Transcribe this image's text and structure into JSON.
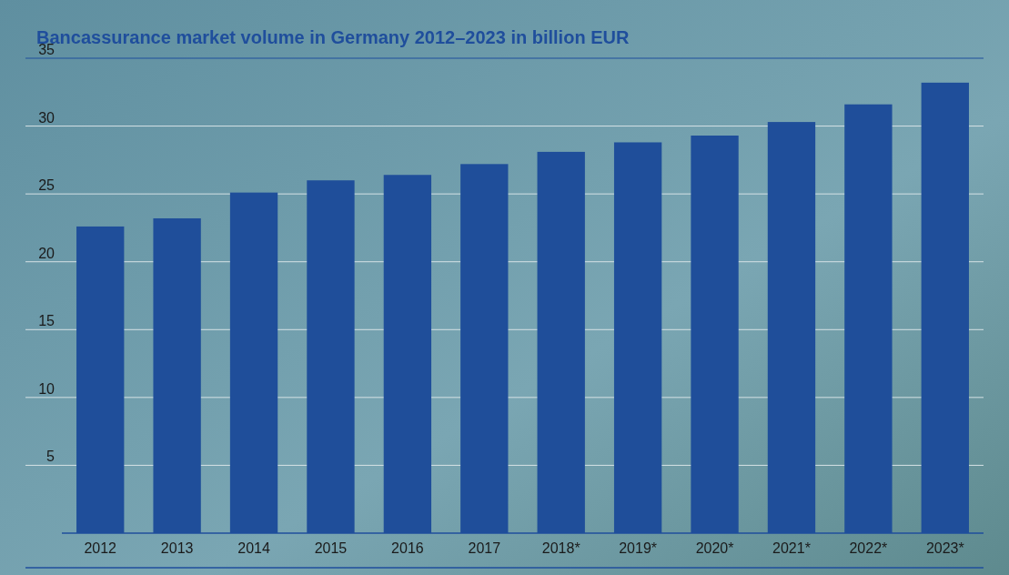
{
  "chart_data": {
    "type": "bar",
    "title": "Bancassurance market volume in Germany 2012–2023 in billion EUR",
    "categories": [
      "2012",
      "2013",
      "2014",
      "2015",
      "2016",
      "2017",
      "2018*",
      "2019*",
      "2020*",
      "2021*",
      "2022*",
      "2023*"
    ],
    "values": [
      22.6,
      23.2,
      25.1,
      26.0,
      26.4,
      27.2,
      28.1,
      28.8,
      29.3,
      30.3,
      31.6,
      33.2
    ],
    "color": "#1f4e9a",
    "ylim": [
      0,
      35
    ],
    "yticks": [
      5,
      10,
      15,
      20,
      25,
      30,
      35
    ],
    "grid": "y"
  }
}
